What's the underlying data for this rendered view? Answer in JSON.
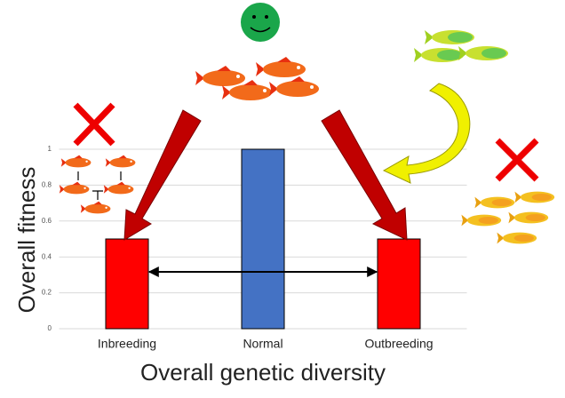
{
  "chart_data": {
    "type": "bar",
    "categories": [
      "Inbreeding",
      "Normal",
      "Outbreeding"
    ],
    "values": [
      0.5,
      1,
      0.5
    ],
    "colors": [
      "#ff0000",
      "#4472c4",
      "#ff0000"
    ],
    "ylim": [
      0,
      1
    ],
    "yticks": [
      0,
      0.2,
      0.4,
      0.6,
      0.8,
      1
    ],
    "grid": true,
    "xlabel": "Overall genetic diversity",
    "ylabel": "Overall fitness"
  }
}
